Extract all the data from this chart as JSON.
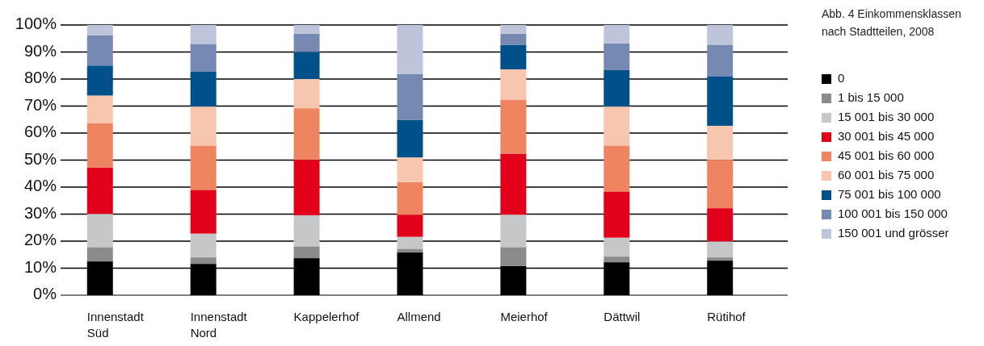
{
  "chart_data": {
    "type": "bar",
    "stacked": true,
    "title": "Abb. 4 Einkommensklassen nach Stadtteilen, 2008",
    "categories": [
      "Innenstadt Süd",
      "Innenstadt Nord",
      "Kappelerhof",
      "Allmend",
      "Meierhof",
      "Dättwil",
      "Rütihof"
    ],
    "series": [
      {
        "name": "0",
        "color": "#000000",
        "values": [
          12.5,
          11.6,
          13.7,
          15.8,
          10.8,
          12.2,
          12.8
        ]
      },
      {
        "name": "1 bis 15 000",
        "color": "#8a8b8c",
        "values": [
          5.3,
          2.4,
          4.4,
          1.4,
          7.0,
          2.1,
          1.2
        ]
      },
      {
        "name": "15 001 bis 30 000",
        "color": "#c6c7c8",
        "values": [
          12.3,
          8.8,
          11.5,
          4.4,
          12.0,
          7.0,
          5.9
        ]
      },
      {
        "name": "30 001 bis 45 000",
        "color": "#e2001a",
        "values": [
          17.2,
          16.2,
          20.5,
          8.2,
          22.6,
          17.1,
          12.3
        ]
      },
      {
        "name": "45 001 bis 60 000",
        "color": "#ee8560",
        "values": [
          16.3,
          16.4,
          19.1,
          12.1,
          20.0,
          17.0,
          17.9
        ]
      },
      {
        "name": "60 001 bis 75 000",
        "color": "#f7c6af",
        "values": [
          10.3,
          14.4,
          10.8,
          9.1,
          11.2,
          14.4,
          12.6
        ]
      },
      {
        "name": "75 001 bis 100 000",
        "color": "#00508a",
        "values": [
          11.1,
          12.9,
          10.0,
          13.8,
          9.1,
          13.5,
          18.2
        ]
      },
      {
        "name": "100 001 bis 150 000",
        "color": "#7689b3",
        "values": [
          11.2,
          10.3,
          6.8,
          17.0,
          4.1,
          9.9,
          11.8
        ]
      },
      {
        "name": "150 001 und grösser",
        "color": "#bec4da",
        "values": [
          3.8,
          7.0,
          3.2,
          18.2,
          3.2,
          6.8,
          7.3
        ]
      }
    ],
    "ylim": [
      0,
      100
    ],
    "yticks": [
      {
        "value": 0,
        "label": "0%"
      },
      {
        "value": 10,
        "label": "10%"
      },
      {
        "value": 20,
        "label": "20%"
      },
      {
        "value": 30,
        "label": "30%"
      },
      {
        "value": 40,
        "label": "40%"
      },
      {
        "value": 50,
        "label": "50%"
      },
      {
        "value": 60,
        "label": "60%"
      },
      {
        "value": 70,
        "label": "70%"
      },
      {
        "value": 80,
        "label": "80%"
      },
      {
        "value": 90,
        "label": "90%"
      },
      {
        "value": 100,
        "label": "100%"
      }
    ],
    "grid": "y",
    "legend": "right"
  }
}
